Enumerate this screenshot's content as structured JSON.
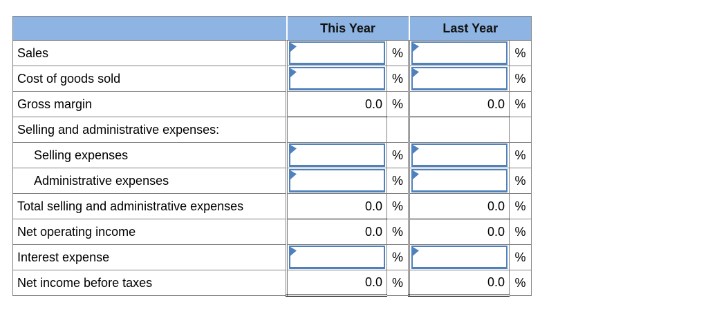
{
  "table": {
    "header": {
      "label": "",
      "this_year": "This Year",
      "last_year": "Last Year"
    },
    "rows": [
      {
        "label": "Sales",
        "type": "input",
        "this_year": {
          "value": "",
          "pct": "%"
        },
        "last_year": {
          "value": "",
          "pct": "%"
        }
      },
      {
        "label": "Cost of goods sold",
        "type": "input",
        "this_year": {
          "value": "",
          "pct": "%"
        },
        "last_year": {
          "value": "",
          "pct": "%"
        }
      },
      {
        "label": "Gross margin",
        "type": "computed",
        "this_year": {
          "value": "0.0",
          "pct": "%"
        },
        "last_year": {
          "value": "0.0",
          "pct": "%"
        }
      },
      {
        "label": "Selling and administrative expenses:",
        "type": "section",
        "this_year": {
          "value": "",
          "pct": ""
        },
        "last_year": {
          "value": "",
          "pct": ""
        }
      },
      {
        "label": "Selling expenses",
        "type": "input",
        "indent": true,
        "this_year": {
          "value": "",
          "pct": "%"
        },
        "last_year": {
          "value": "",
          "pct": "%"
        }
      },
      {
        "label": "Administrative expenses",
        "type": "input",
        "indent": true,
        "this_year": {
          "value": "",
          "pct": "%"
        },
        "last_year": {
          "value": "",
          "pct": "%"
        }
      },
      {
        "label": "Total selling and administrative expenses",
        "type": "computed",
        "this_year": {
          "value": "0.0",
          "pct": "%"
        },
        "last_year": {
          "value": "0.0",
          "pct": "%"
        }
      },
      {
        "label": "Net operating income",
        "type": "computed",
        "this_year": {
          "value": "0.0",
          "pct": "%"
        },
        "last_year": {
          "value": "0.0",
          "pct": "%"
        }
      },
      {
        "label": "Interest expense",
        "type": "input",
        "this_year": {
          "value": "",
          "pct": "%"
        },
        "last_year": {
          "value": "",
          "pct": "%"
        }
      },
      {
        "label": "Net income before taxes",
        "type": "computed",
        "this_year": {
          "value": "0.0",
          "pct": "%"
        },
        "last_year": {
          "value": "0.0",
          "pct": "%"
        }
      }
    ],
    "colors": {
      "header_bg": "#8DB4E2",
      "input_border": "#4F81BD",
      "grid_line": "#7F7F7F",
      "rule_line": "#000000"
    }
  }
}
